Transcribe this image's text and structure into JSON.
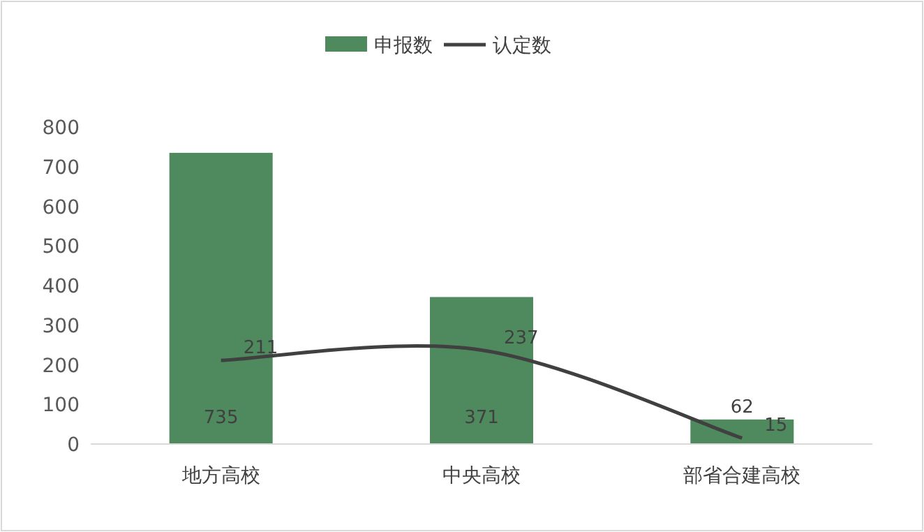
{
  "chart_data": {
    "type": "bar",
    "categories": [
      "地方高校",
      "中央高校",
      "部省合建高校"
    ],
    "series": [
      {
        "name": "申报数",
        "color": "#4e8a5e",
        "values": [
          735,
          371,
          62
        ]
      },
      {
        "name": "认定数",
        "type": "line",
        "color": "#404040",
        "values": [
          211,
          237,
          15
        ]
      }
    ],
    "ylim": [
      0,
      800
    ],
    "yticks": [
      0,
      100,
      200,
      300,
      400,
      500,
      600,
      700,
      800
    ],
    "legend": "top",
    "data_labels": true,
    "marker": "none",
    "grid": false
  }
}
